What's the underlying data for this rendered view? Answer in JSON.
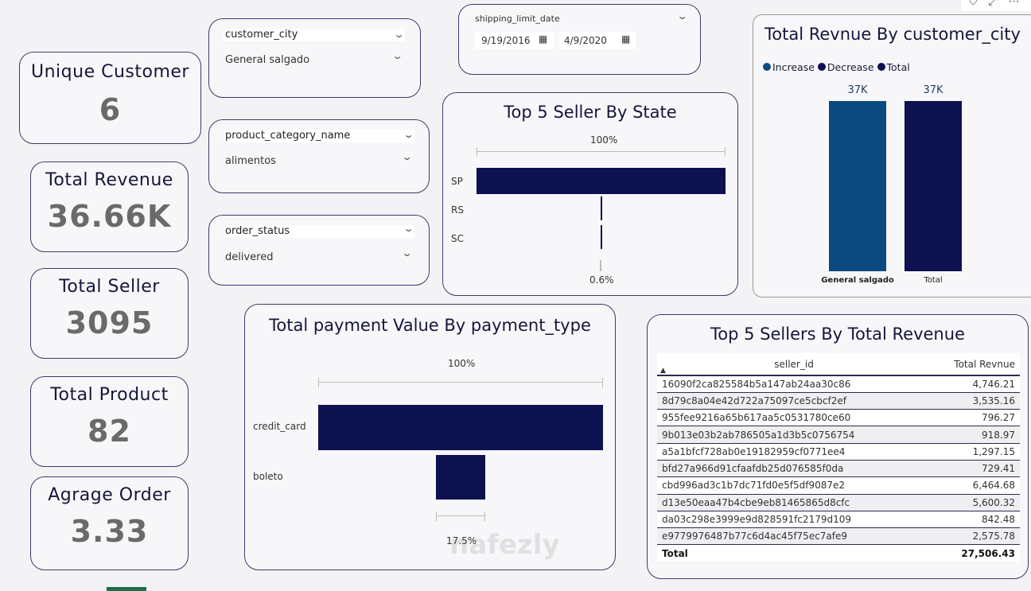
{
  "kpis": [
    {
      "title": "Unique Customer",
      "value": "6"
    },
    {
      "title": "Total Revenue",
      "value": "36.66K"
    },
    {
      "title": "Total Seller",
      "value": "3095"
    },
    {
      "title": "Total Product",
      "value": "82"
    },
    {
      "title": "Agrage Order",
      "value": "3.33"
    }
  ],
  "slicers": {
    "city": {
      "label": "customer_city",
      "value": "General salgado"
    },
    "category": {
      "label": "product_category_name",
      "value": "alimentos"
    },
    "status": {
      "label": "order_status",
      "value": "delivered"
    },
    "date": {
      "label": "shipping_limit_date",
      "start": "9/19/2016",
      "end": "4/9/2020"
    }
  },
  "visual_header": {
    "icons": [
      "filter-icon",
      "focus-mode-icon",
      "more-options-icon"
    ]
  },
  "chart_data": [
    {
      "type": "bar",
      "subtype": "funnel",
      "title": "Top 5 Seller By State",
      "categories": [
        "SP",
        "RS",
        "SC"
      ],
      "values_pct": [
        100,
        0.6,
        0.6
      ],
      "top_label": "100%",
      "bottom_label": "0.6%",
      "color": "#0d1150"
    },
    {
      "type": "bar",
      "subtype": "waterfall",
      "title": "Total Revnue By customer_city",
      "legend": [
        {
          "name": "Increase",
          "color": "#0b4a80"
        },
        {
          "name": "Decrease",
          "color": "#0d1150"
        },
        {
          "name": "Total",
          "color": "#0d1150"
        }
      ],
      "legend_position": "top-left",
      "categories": [
        "General salgado",
        "Total"
      ],
      "values": [
        37,
        37
      ],
      "data_labels": [
        "37K",
        "37K"
      ],
      "colors": [
        "#0b4a80",
        "#0d1150"
      ]
    },
    {
      "type": "bar",
      "subtype": "funnel",
      "title": "Total payment Value By payment_type",
      "categories": [
        "credit_card",
        "boleto"
      ],
      "values_pct": [
        100,
        17.5
      ],
      "top_label": "100%",
      "bottom_label": "17.5%",
      "color": "#0d1150"
    }
  ],
  "table": {
    "title": "Top 5 Sellers By Total Revenue",
    "columns": [
      "seller_id",
      "Total Revnue"
    ],
    "rows": [
      [
        "16090f2ca825584b5a147ab24aa30c86",
        "4,746.21"
      ],
      [
        "8d79c8a04e42d722a75097ce5cbcf2ef",
        "3,535.16"
      ],
      [
        "955fee9216a65b617aa5c0531780ce60",
        "796.27"
      ],
      [
        "9b013e03b2ab786505a1d3b5c0756754",
        "918.97"
      ],
      [
        "a5a1bfcf728ab0e19182959cf0771ee4",
        "1,297.15"
      ],
      [
        "bfd27a966d91cfaafdb25d076585f0da",
        "729.41"
      ],
      [
        "cbd996ad3c1b7dc71fd0e5f5df9087e2",
        "6,464.68"
      ],
      [
        "d13e50eaa47b4cbe9eb81465865d8cfc",
        "5,600.32"
      ],
      [
        "da03c298e3999e9d828591fc2179d109",
        "842.48"
      ],
      [
        "e9779976487b77c6d4ac45f75ec7afe9",
        "2,575.78"
      ]
    ],
    "total_label": "Total",
    "total_value": "27,506.43"
  },
  "watermark": "نفذلي nafezly.com"
}
